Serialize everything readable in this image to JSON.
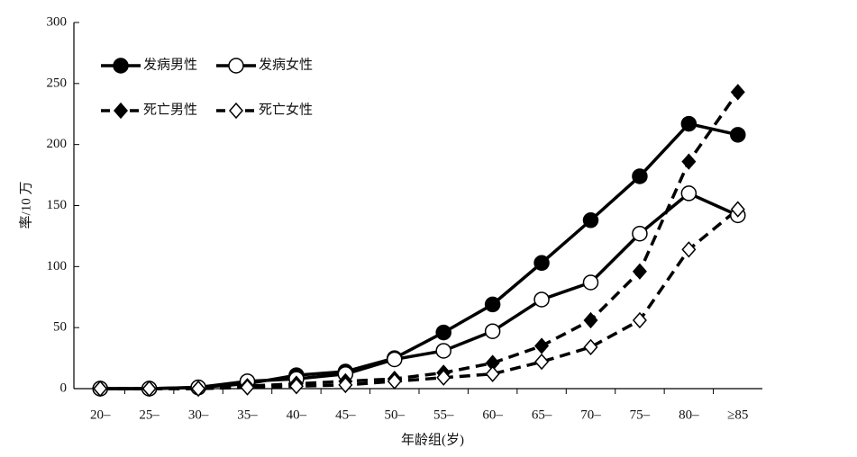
{
  "chart_data": {
    "type": "line",
    "y_label": "率/10 万",
    "x_label": "年龄组(岁)",
    "categories": [
      "20–",
      "25–",
      "30–",
      "35–",
      "40–",
      "45–",
      "50–",
      "55–",
      "60–",
      "65–",
      "70–",
      "75–",
      "80–",
      "≥85"
    ],
    "series": [
      {
        "name": "发病男性",
        "color": "#000000",
        "dashed": false,
        "marker": "circle",
        "filled": true,
        "values": [
          0,
          0,
          1,
          4,
          11,
          14,
          25,
          46,
          69,
          103,
          138,
          174,
          217,
          208
        ]
      },
      {
        "name": "发病女性",
        "color": "#000000",
        "dashed": false,
        "marker": "circle",
        "filled": false,
        "values": [
          0,
          0,
          1,
          6,
          8,
          12,
          24,
          31,
          47,
          73,
          87,
          127,
          160,
          142
        ]
      },
      {
        "name": "死亡男性",
        "color": "#000000",
        "dashed": true,
        "marker": "diamond",
        "filled": true,
        "values": [
          0,
          0,
          0,
          2,
          4,
          6,
          8,
          13,
          21,
          35,
          56,
          96,
          186,
          243
        ]
      },
      {
        "name": "死亡女性",
        "color": "#000000",
        "dashed": true,
        "marker": "diamond",
        "filled": false,
        "values": [
          0,
          0,
          0,
          1,
          2,
          3,
          6,
          9,
          12,
          22,
          34,
          56,
          114,
          147
        ]
      }
    ],
    "ylim": [
      0,
      300
    ],
    "yticks": [
      0,
      50,
      100,
      150,
      200,
      250,
      300
    ],
    "grid": false,
    "legend": "top-left"
  }
}
